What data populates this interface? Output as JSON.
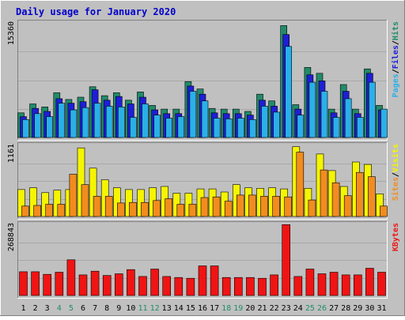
{
  "chart_data": {
    "type": "bar",
    "title": "Daily usage for January 2020",
    "categories": [
      "1",
      "2",
      "3",
      "4",
      "5",
      "6",
      "7",
      "8",
      "9",
      "10",
      "11",
      "12",
      "13",
      "14",
      "15",
      "16",
      "17",
      "18",
      "19",
      "20",
      "21",
      "22",
      "23",
      "24",
      "25",
      "26",
      "27",
      "28",
      "29",
      "30",
      "31"
    ],
    "weekend_days": [
      "4",
      "5",
      "11",
      "12",
      "18",
      "19",
      "25",
      "26"
    ],
    "panels": [
      {
        "id": "hits-files-pages",
        "ymax": 15360,
        "ymax_label": "15360",
        "legend": [
          "Pages",
          "/",
          "Files",
          "/",
          "Hits"
        ],
        "series": [
          {
            "name": "Hits",
            "color": "#228b6b",
            "values": [
              3300,
              4500,
              4100,
              6000,
              5100,
              5400,
              6800,
              5600,
              6000,
              5000,
              6100,
              4300,
              3800,
              3800,
              7500,
              6500,
              3900,
              3800,
              3800,
              3500,
              5800,
              4900,
              15000,
              4400,
              9400,
              8600,
              3800,
              7100,
              3800,
              9200,
              4300
            ]
          },
          {
            "name": "Files",
            "color": "#1e1ed6",
            "values": [
              2800,
              3900,
              3500,
              5200,
              4600,
              4800,
              6400,
              5000,
              5500,
              4500,
              5400,
              3700,
              3200,
              3200,
              6900,
              5800,
              3300,
              3200,
              3200,
              3000,
              5000,
              4200,
              13800,
              3800,
              8400,
              7600,
              3300,
              6200,
              3200,
              8600,
              3700
            ]
          },
          {
            "name": "Pages",
            "color": "#2ab0e8",
            "values": [
              2400,
              3200,
              2800,
              4600,
              3700,
              4000,
              4600,
              4200,
              4100,
              2700,
              4500,
              3000,
              2600,
              2800,
              6200,
              4900,
              2600,
              2500,
              2600,
              2400,
              4200,
              3400,
              12200,
              3000,
              7400,
              6200,
              2700,
              5200,
              2700,
              7400,
              3800
            ]
          }
        ]
      },
      {
        "id": "visits-sites",
        "ymax": 1161,
        "ymax_label": "1161",
        "legend": [
          "Sites",
          "/",
          "Visits"
        ],
        "series": [
          {
            "name": "Visits",
            "color": "#f5f500",
            "values": [
              440,
              470,
              390,
              430,
              440,
              1120,
              790,
              600,
              470,
              440,
              440,
              470,
              490,
              380,
              380,
              450,
              450,
              400,
              520,
              470,
              460,
              470,
              450,
              1140,
              460,
              1020,
              750,
              490,
              890,
              850,
              370
            ]
          },
          {
            "name": "Sites",
            "color": "#f28c1e",
            "values": [
              170,
              180,
              200,
              200,
              690,
              520,
              330,
              330,
              220,
              230,
              230,
              260,
              290,
              200,
              200,
              310,
              320,
              250,
              350,
              350,
              330,
              330,
              320,
              1050,
              270,
              760,
              550,
              340,
              720,
              650,
              170
            ]
          }
        ]
      },
      {
        "id": "kbytes",
        "ymax": 268843,
        "ymax_label": "268843",
        "legend": [
          "KBytes"
        ],
        "series": [
          {
            "name": "KBytes",
            "color": "#f01414",
            "values": [
              90000,
              90000,
              80000,
              88000,
              135000,
              78000,
              92000,
              76000,
              82000,
              98000,
              72000,
              100000,
              72000,
              68000,
              65000,
              112000,
              112000,
              68000,
              68000,
              68000,
              65000,
              78000,
              268000,
              72000,
              100000,
              82000,
              88000,
              78000,
              78000,
              103000,
              88000
            ]
          }
        ]
      }
    ],
    "legend_colors": {
      "Pages": "#2ab0e8",
      "Files": "#1e1ed6",
      "Hits": "#228b6b",
      "Sites": "#f28c1e",
      "Visits": "#f5f500",
      "KBytes": "#f01414",
      "sep": "#000000"
    },
    "colors": {
      "title": "#0000cc",
      "plot_bg": "#c0c0c0",
      "frame_bg": "#c0c0c0",
      "weekend_label": "#228b6b",
      "weekday_label": "#000000"
    },
    "grid": true
  }
}
